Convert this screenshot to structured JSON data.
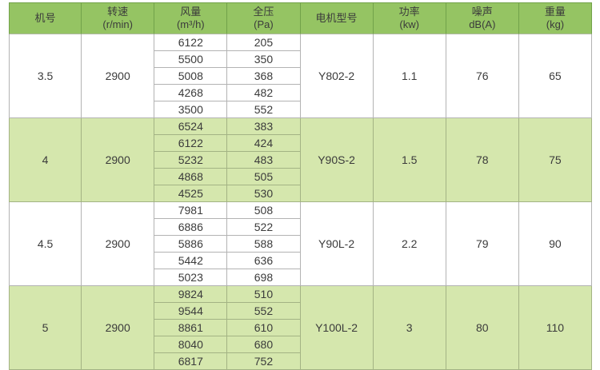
{
  "colors": {
    "header_bg": "#95c463",
    "header_line": "#72a24a",
    "green_block_bg": "#d5e7ad",
    "green_block_line": "#a3b384",
    "white_block_line": "#b3b3b3",
    "text": "#3b3b3b",
    "page_bg": "#ffffff"
  },
  "table": {
    "headers": [
      {
        "label": "机号",
        "unit": ""
      },
      {
        "label": "转速",
        "unit": "(r/min)"
      },
      {
        "label": "风量",
        "unit": "(m³/h)"
      },
      {
        "label": "全压",
        "unit": "(Pa)"
      },
      {
        "label": "电机型号",
        "unit": ""
      },
      {
        "label": "功率",
        "unit": "(kw)"
      },
      {
        "label": "噪声",
        "unit": "dB(A)"
      },
      {
        "label": "重量",
        "unit": "(kg)"
      }
    ],
    "blocks": [
      {
        "model_no": "3.5",
        "speed": "2900",
        "motor": "Y802-2",
        "power": "1.1",
        "noise": "76",
        "weight": "65",
        "rows": [
          {
            "flow": "6122",
            "pressure": "205"
          },
          {
            "flow": "5500",
            "pressure": "350"
          },
          {
            "flow": "5008",
            "pressure": "368"
          },
          {
            "flow": "4268",
            "pressure": "482"
          },
          {
            "flow": "3500",
            "pressure": "552"
          }
        ]
      },
      {
        "model_no": "4",
        "speed": "2900",
        "motor": "Y90S-2",
        "power": "1.5",
        "noise": "78",
        "weight": "75",
        "rows": [
          {
            "flow": "6524",
            "pressure": "383"
          },
          {
            "flow": "6122",
            "pressure": "424"
          },
          {
            "flow": "5232",
            "pressure": "483"
          },
          {
            "flow": "4868",
            "pressure": "505"
          },
          {
            "flow": "4525",
            "pressure": "530"
          }
        ]
      },
      {
        "model_no": "4.5",
        "speed": "2900",
        "motor": "Y90L-2",
        "power": "2.2",
        "noise": "79",
        "weight": "90",
        "rows": [
          {
            "flow": "7981",
            "pressure": "508"
          },
          {
            "flow": "6886",
            "pressure": "522"
          },
          {
            "flow": "5886",
            "pressure": "588"
          },
          {
            "flow": "5442",
            "pressure": "636"
          },
          {
            "flow": "5023",
            "pressure": "698"
          }
        ]
      },
      {
        "model_no": "5",
        "speed": "2900",
        "motor": "Y100L-2",
        "power": "3",
        "noise": "80",
        "weight": "110",
        "rows": [
          {
            "flow": "9824",
            "pressure": "510"
          },
          {
            "flow": "9544",
            "pressure": "552"
          },
          {
            "flow": "8861",
            "pressure": "610"
          },
          {
            "flow": "8040",
            "pressure": "680"
          },
          {
            "flow": "6817",
            "pressure": "752"
          }
        ]
      }
    ]
  }
}
